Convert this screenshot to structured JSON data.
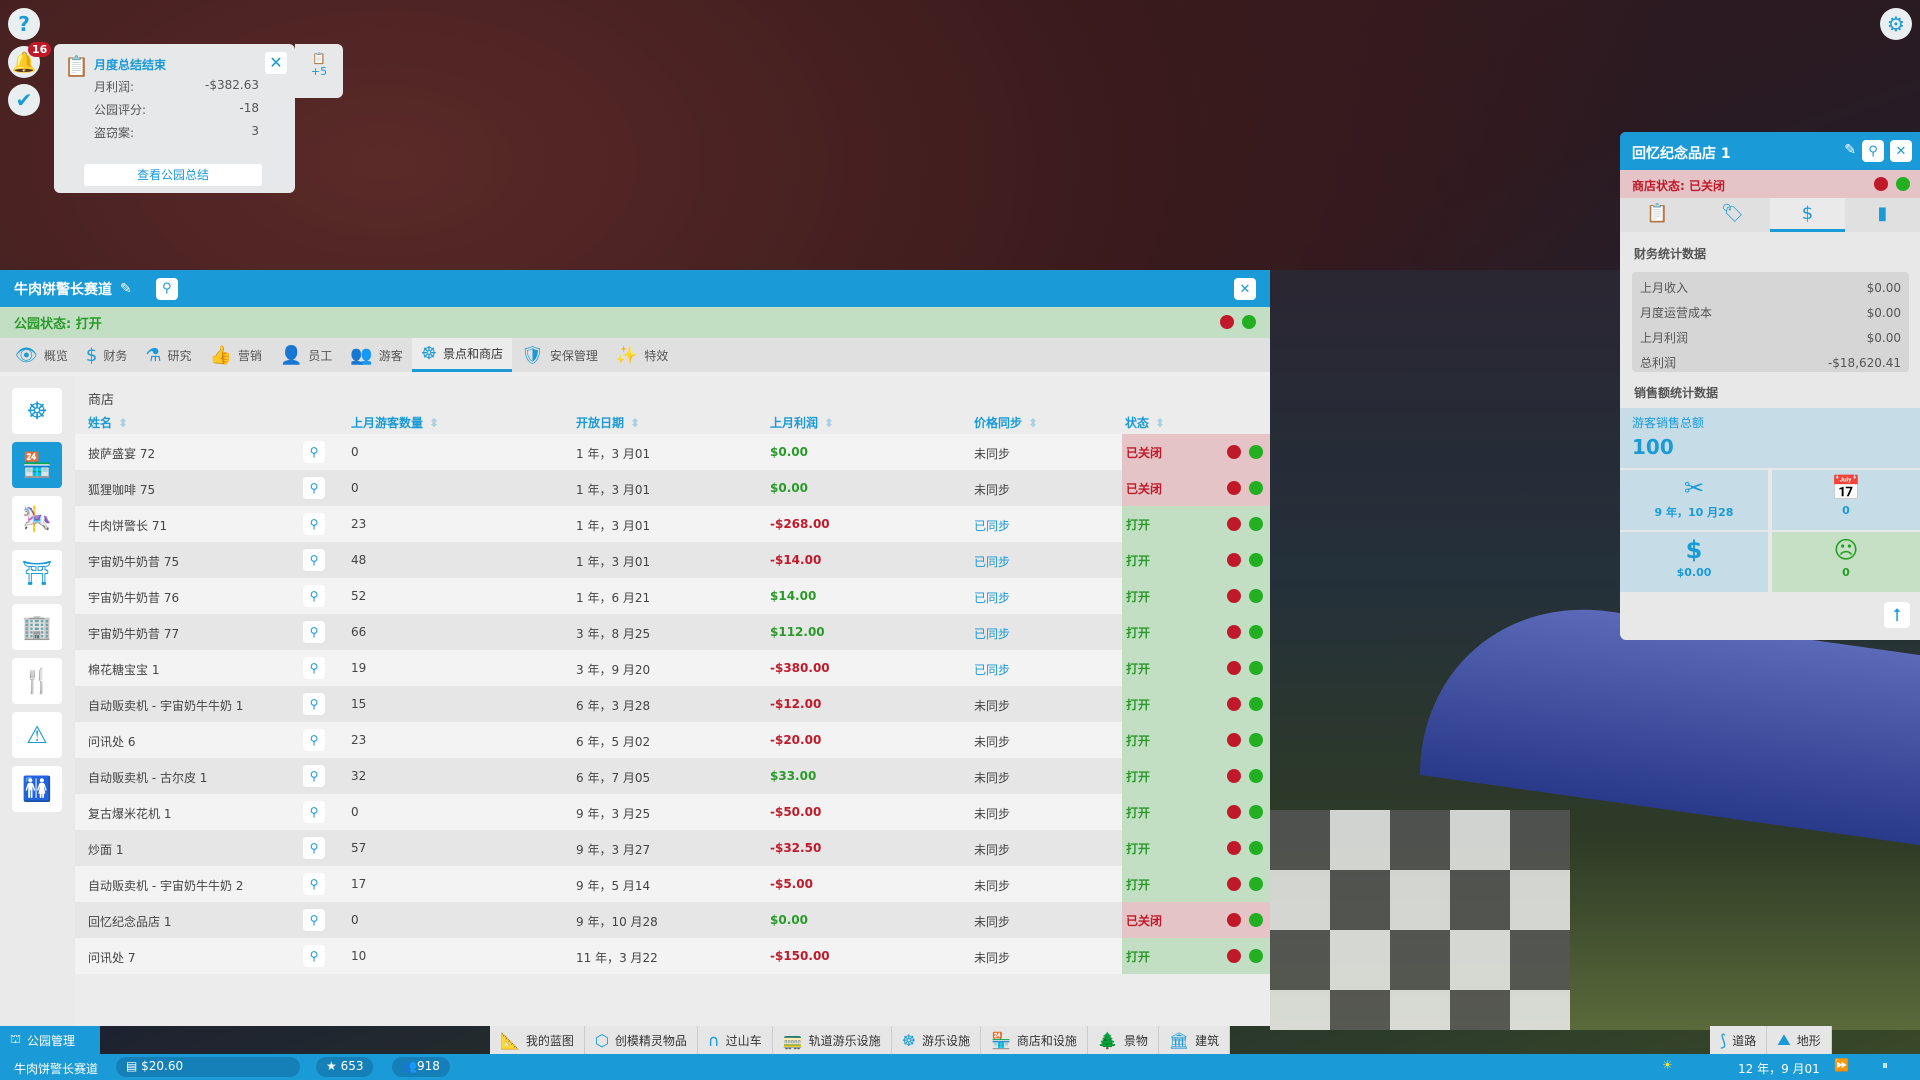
{
  "top_icons": {
    "help": "?",
    "notifications_count": "16"
  },
  "notification": {
    "title": "月度总结结束",
    "rows": [
      {
        "label": "月利润:",
        "value": "-$382.63"
      },
      {
        "label": "公园评分:",
        "value": "-18"
      },
      {
        "label": "盗窃案:",
        "value": "3"
      }
    ],
    "button": "查看公园总结",
    "more": "+5"
  },
  "park_panel": {
    "title": "牛肉饼警长赛道",
    "status": "公园状态: 打开",
    "tabs": [
      {
        "icon": "👁",
        "label": "概览"
      },
      {
        "icon": "$",
        "label": "财务"
      },
      {
        "icon": "⚗",
        "label": "研究"
      },
      {
        "icon": "👍",
        "label": "营销"
      },
      {
        "icon": "👤",
        "label": "员工"
      },
      {
        "icon": "👥",
        "label": "游客"
      },
      {
        "icon": "☸",
        "label": "景点和商店",
        "active": true
      },
      {
        "icon": "🛡",
        "label": "安保管理"
      },
      {
        "icon": "✨",
        "label": "特效"
      }
    ],
    "side_icons": [
      "ferris-wheel",
      "shop",
      "ride",
      "stall",
      "building",
      "food",
      "warning",
      "toilet"
    ],
    "section": "商店",
    "columns": [
      "姓名",
      "上月游客数量",
      "开放日期",
      "上月利润",
      "价格同步",
      "状态"
    ],
    "rows": [
      [
        "披萨盛宴 72",
        "0",
        "1 年，3 月01",
        "$0.00",
        "未同步",
        "已关闭"
      ],
      [
        "狐狸咖啡 75",
        "0",
        "1 年，3 月01",
        "$0.00",
        "未同步",
        "已关闭"
      ],
      [
        "牛肉饼警长 71",
        "23",
        "1 年，3 月01",
        "-$268.00",
        "已同步",
        "打开"
      ],
      [
        "宇宙奶牛奶昔 75",
        "48",
        "1 年，3 月01",
        "-$14.00",
        "已同步",
        "打开"
      ],
      [
        "宇宙奶牛奶昔 76",
        "52",
        "1 年，6 月21",
        "$14.00",
        "已同步",
        "打开"
      ],
      [
        "宇宙奶牛奶昔 77",
        "66",
        "3 年，8 月25",
        "$112.00",
        "已同步",
        "打开"
      ],
      [
        "棉花糖宝宝 1",
        "19",
        "3 年，9 月20",
        "-$380.00",
        "已同步",
        "打开"
      ],
      [
        "自动贩卖机 - 宇宙奶牛牛奶 1",
        "15",
        "6 年，3 月28",
        "-$12.00",
        "未同步",
        "打开"
      ],
      [
        "问讯处 6",
        "23",
        "6 年，5 月02",
        "-$20.00",
        "未同步",
        "打开"
      ],
      [
        "自动贩卖机 - 古尔皮 1",
        "32",
        "6 年，7 月05",
        "$33.00",
        "未同步",
        "打开"
      ],
      [
        "复古爆米花机 1",
        "0",
        "9 年，3 月25",
        "-$50.00",
        "未同步",
        "打开"
      ],
      [
        "炒面 1",
        "57",
        "9 年，3 月27",
        "-$32.50",
        "未同步",
        "打开"
      ],
      [
        "自动贩卖机 - 宇宙奶牛牛奶 2",
        "17",
        "9 年，5 月14",
        "-$5.00",
        "未同步",
        "打开"
      ],
      [
        "回忆纪念品店 1",
        "0",
        "9 年，10 月28",
        "$0.00",
        "未同步",
        "已关闭"
      ],
      [
        "问讯处 7",
        "10",
        "11 年，3 月22",
        "-$150.00",
        "未同步",
        "打开"
      ]
    ]
  },
  "shop_panel": {
    "title": "回忆纪念品店 1",
    "status": "商店状态: 已关闭",
    "finance_title": "财务统计数据",
    "finance": [
      {
        "label": "上月收入",
        "value": "$0.00"
      },
      {
        "label": "月度运营成本",
        "value": "$0.00"
      },
      {
        "label": "上月利润",
        "value": "$0.00"
      },
      {
        "label": "总利润",
        "value": "-$18,620.41"
      }
    ],
    "sales_title": "销售额统计数据",
    "sales_label": "游客销售总额",
    "sales_value": "100",
    "opened": "9 年，10 月28",
    "visitors": "0",
    "price": "$0.00",
    "unhappy": "0"
  },
  "toolbar": {
    "park_mgmt": "公园管理",
    "items": [
      {
        "icon": "📐",
        "label": "我的蓝图"
      },
      {
        "icon": "⬡",
        "label": "创模精灵物品"
      },
      {
        "icon": "∩",
        "label": "过山车"
      },
      {
        "icon": "🚃",
        "label": "轨道游乐设施"
      },
      {
        "icon": "☸",
        "label": "游乐设施"
      },
      {
        "icon": "🏪",
        "label": "商店和设施"
      },
      {
        "icon": "🌲",
        "label": "景物"
      },
      {
        "icon": "🏛",
        "label": "建筑"
      }
    ],
    "right": [
      {
        "icon": "⟆",
        "label": "道路"
      },
      {
        "icon": "⛰",
        "label": "地形"
      }
    ]
  },
  "statusbar": {
    "park_name": "牛肉饼警长赛道",
    "money": "$20.60",
    "rating": "653",
    "guests": "918",
    "date": "12 年，9 月01"
  },
  "colors": {
    "accent": "#1a9ad6",
    "positive": "#2a9a2a",
    "negative": "#c01a2a"
  }
}
